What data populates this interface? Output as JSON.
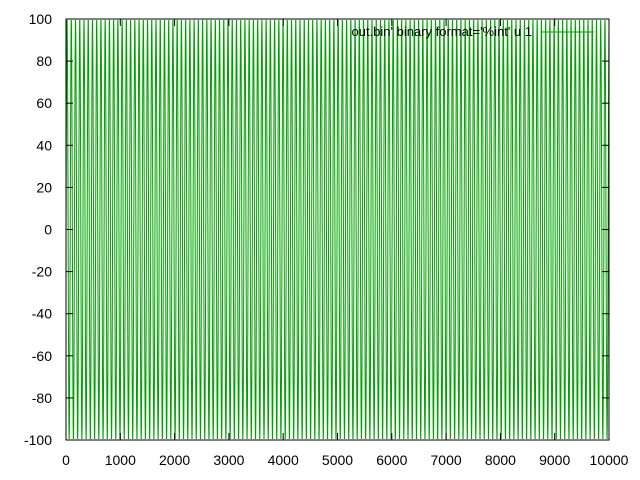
{
  "chart_data": {
    "type": "line",
    "title": "",
    "xlabel": "",
    "ylabel": "",
    "xlim": [
      0,
      10000
    ],
    "ylim": [
      -100,
      100
    ],
    "x_ticks": [
      0,
      1000,
      2000,
      3000,
      4000,
      5000,
      6000,
      7000,
      8000,
      9000,
      10000
    ],
    "y_ticks": [
      -100,
      -80,
      -60,
      -40,
      -20,
      0,
      20,
      40,
      60,
      80,
      100
    ],
    "x_tick_labels": [
      "0",
      "1000",
      "2000",
      "3000",
      "4000",
      "5000",
      "6000",
      "7000",
      "8000",
      "9000",
      "10000"
    ],
    "y_tick_labels": [
      "-100",
      "-80",
      "-60",
      "-40",
      "-20",
      "0",
      "20",
      "40",
      "60",
      "80",
      "100"
    ],
    "grid": false,
    "legend_position": "top-right",
    "series": [
      {
        "name": "out.bin' binary format='%int' u 1",
        "color": "#00a000",
        "amplitude": 100,
        "period": 78
      }
    ]
  }
}
